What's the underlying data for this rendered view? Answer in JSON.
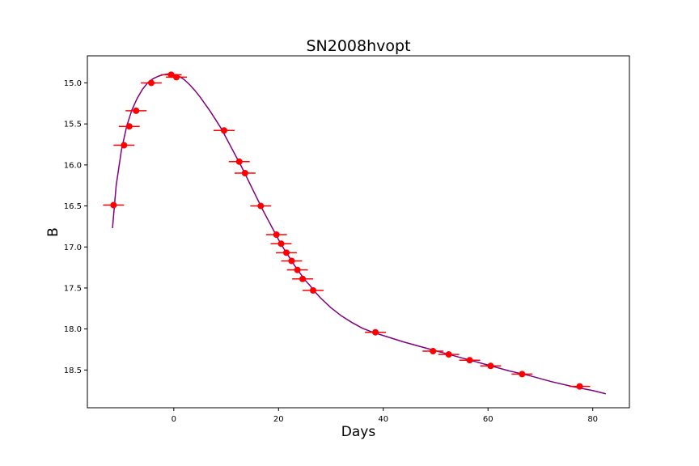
{
  "chart_data": {
    "type": "scatter",
    "title": "SN2008hvopt",
    "xlabel": "Days",
    "ylabel": "B",
    "xlim": [
      -16.5,
      87
    ],
    "ylim": [
      18.96,
      14.67
    ],
    "y_inverted": true,
    "grid": false,
    "xticks": [
      0,
      20,
      40,
      60,
      80
    ],
    "yticks": [
      15.0,
      15.5,
      16.0,
      16.5,
      17.0,
      17.5,
      18.0,
      18.5
    ],
    "marker_color": "#ff0000",
    "curve_color": "#800080",
    "points": [
      {
        "x": -11.5,
        "y": 16.49,
        "xerr": 2.0
      },
      {
        "x": -9.5,
        "y": 15.76,
        "xerr": 2.0
      },
      {
        "x": -8.5,
        "y": 15.53,
        "xerr": 2.0
      },
      {
        "x": -7.2,
        "y": 15.34,
        "xerr": 2.0
      },
      {
        "x": -4.3,
        "y": 15.0,
        "xerr": 2.0
      },
      {
        "x": -0.5,
        "y": 14.9,
        "xerr": 2.0
      },
      {
        "x": 0.5,
        "y": 14.93,
        "xerr": 2.0
      },
      {
        "x": 9.6,
        "y": 15.58,
        "xerr": 2.0
      },
      {
        "x": 12.5,
        "y": 15.96,
        "xerr": 2.0
      },
      {
        "x": 13.6,
        "y": 16.1,
        "xerr": 2.0
      },
      {
        "x": 16.6,
        "y": 16.5,
        "xerr": 2.0
      },
      {
        "x": 19.6,
        "y": 16.85,
        "xerr": 2.0
      },
      {
        "x": 20.5,
        "y": 16.96,
        "xerr": 2.0
      },
      {
        "x": 21.5,
        "y": 17.07,
        "xerr": 2.0
      },
      {
        "x": 22.5,
        "y": 17.17,
        "xerr": 2.0
      },
      {
        "x": 23.6,
        "y": 17.28,
        "xerr": 2.0
      },
      {
        "x": 24.6,
        "y": 17.39,
        "xerr": 2.0
      },
      {
        "x": 26.6,
        "y": 17.53,
        "xerr": 2.0
      },
      {
        "x": 38.5,
        "y": 18.04,
        "xerr": 2.0
      },
      {
        "x": 49.5,
        "y": 18.27,
        "xerr": 2.0
      },
      {
        "x": 52.5,
        "y": 18.31,
        "xerr": 2.0
      },
      {
        "x": 56.5,
        "y": 18.38,
        "xerr": 2.0
      },
      {
        "x": 60.5,
        "y": 18.45,
        "xerr": 2.0
      },
      {
        "x": 66.5,
        "y": 18.55,
        "xerr": 2.0
      },
      {
        "x": 77.5,
        "y": 18.7,
        "xerr": 2.0
      }
    ],
    "curve": [
      [
        -11.7,
        16.77
      ],
      [
        -11.0,
        16.25
      ],
      [
        -10.0,
        15.82
      ],
      [
        -9.0,
        15.53
      ],
      [
        -8.0,
        15.33
      ],
      [
        -7.0,
        15.19
      ],
      [
        -6.0,
        15.08
      ],
      [
        -5.0,
        15.0
      ],
      [
        -4.0,
        14.95
      ],
      [
        -3.0,
        14.92
      ],
      [
        -2.0,
        14.9
      ],
      [
        -1.0,
        14.89
      ],
      [
        0.0,
        14.9
      ],
      [
        1.0,
        14.92
      ],
      [
        2.0,
        14.96
      ],
      [
        3.0,
        15.02
      ],
      [
        4.0,
        15.09
      ],
      [
        5.0,
        15.17
      ],
      [
        6.0,
        15.26
      ],
      [
        7.0,
        15.35
      ],
      [
        8.0,
        15.45
      ],
      [
        9.0,
        15.55
      ],
      [
        10.0,
        15.67
      ],
      [
        11.0,
        15.79
      ],
      [
        12.0,
        15.91
      ],
      [
        13.0,
        16.03
      ],
      [
        14.0,
        16.16
      ],
      [
        15.0,
        16.29
      ],
      [
        16.0,
        16.42
      ],
      [
        17.0,
        16.55
      ],
      [
        18.0,
        16.67
      ],
      [
        19.0,
        16.79
      ],
      [
        20.0,
        16.91
      ],
      [
        21.0,
        17.02
      ],
      [
        22.0,
        17.12
      ],
      [
        23.0,
        17.22
      ],
      [
        24.0,
        17.31
      ],
      [
        25.0,
        17.4
      ],
      [
        26.0,
        17.47
      ],
      [
        27.0,
        17.55
      ],
      [
        28.0,
        17.62
      ],
      [
        30.0,
        17.74
      ],
      [
        32.0,
        17.84
      ],
      [
        34.0,
        17.92
      ],
      [
        36.0,
        17.99
      ],
      [
        38.0,
        18.04
      ],
      [
        40.0,
        18.08
      ],
      [
        44.0,
        18.16
      ],
      [
        48.0,
        18.23
      ],
      [
        52.0,
        18.3
      ],
      [
        56.0,
        18.37
      ],
      [
        60.0,
        18.44
      ],
      [
        64.0,
        18.51
      ],
      [
        68.0,
        18.57
      ],
      [
        72.0,
        18.64
      ],
      [
        76.0,
        18.7
      ],
      [
        80.0,
        18.75
      ],
      [
        82.5,
        18.79
      ]
    ]
  }
}
